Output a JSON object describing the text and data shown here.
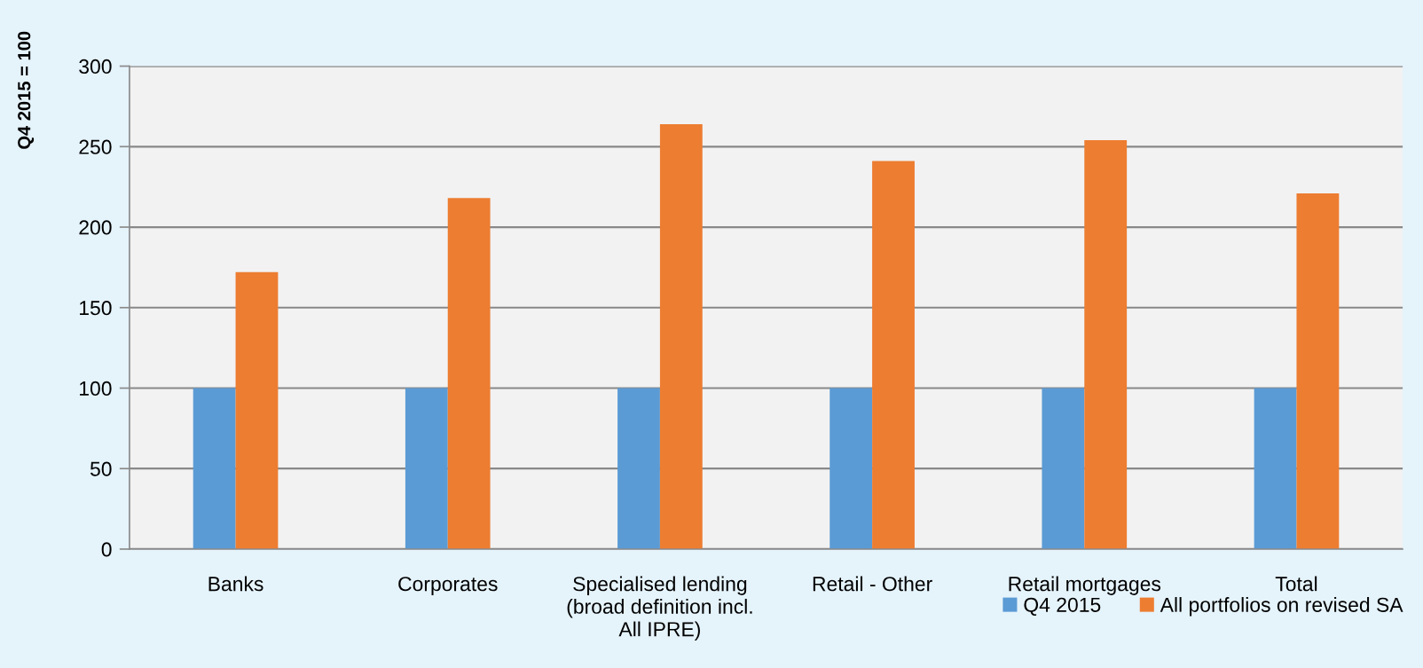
{
  "chart_data": {
    "type": "bar",
    "ylabel": "Q4 2015 = 100",
    "categories": [
      "Banks",
      "Corporates",
      "Specialised lending\n(broad definition incl.\nAll IPRE)",
      "Retail - Other",
      "Retail mortgages",
      "Total"
    ],
    "series": [
      {
        "name": "Q4 2015",
        "color": "#5b9bd5",
        "values": [
          100,
          100,
          100,
          100,
          100,
          100
        ]
      },
      {
        "name": "All portfolios on revised SA",
        "color": "#ed7d31",
        "values": [
          172,
          218,
          264,
          241,
          254,
          221
        ]
      }
    ],
    "ylim": [
      0,
      300
    ],
    "yticks": [
      0,
      50,
      100,
      150,
      200,
      250,
      300
    ],
    "grid": "y",
    "legend": "bottom right"
  }
}
